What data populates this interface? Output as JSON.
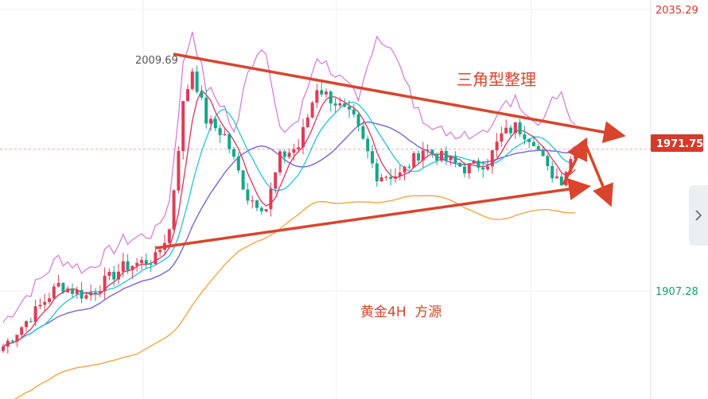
{
  "chart_data": {
    "type": "candlestick",
    "timeframe": "4H",
    "y_axis": {
      "top_label": "2035.29",
      "mid_label": "1907.28",
      "range": [
        1870,
        2035.29
      ]
    },
    "price_tag": {
      "label": "1971.75",
      "value": 1971.75,
      "color": "#d63a2a"
    },
    "high_marker": {
      "label": "2009.69",
      "value": 2009.69
    },
    "annotations": {
      "pattern": "三角型整理",
      "source": "黄金4H  方源"
    },
    "colors": {
      "up": "#dd3d57",
      "down": "#15a68a",
      "ma_short": "#e0325d",
      "ma_mid": "#22c4d8",
      "ma_long": "#7b63d6",
      "boll_band": "#d46ad6",
      "slow_line": "#f0a13a",
      "trend": "#d8452c"
    },
    "series": [
      {
        "name": "",
        "kind": "ma_short"
      },
      {
        "name": "",
        "kind": "ma_mid"
      },
      {
        "name": "",
        "kind": "ma_long"
      },
      {
        "name": "",
        "kind": "boll_band"
      },
      {
        "name": "",
        "kind": "slow_line"
      }
    ]
  },
  "ui": {
    "toggle_icon": "chevron-right-icon"
  }
}
